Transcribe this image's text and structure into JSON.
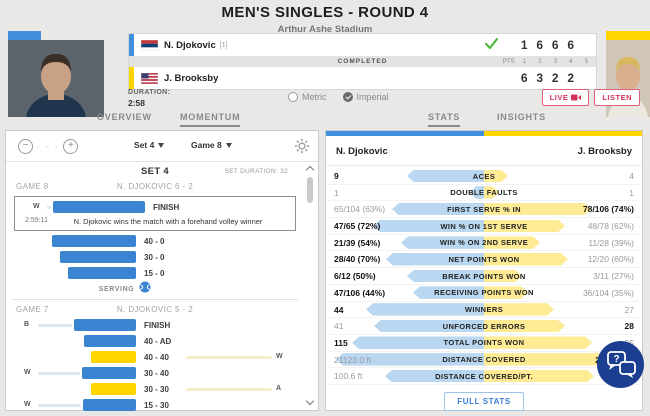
{
  "header": {
    "title": "MEN'S SINGLES - ROUND 4",
    "subtitle": "Arthur Ashe Stadium"
  },
  "scoreboard": {
    "status": "COMPLETED",
    "pts_label": "PTS",
    "set_columns": [
      "1",
      "2",
      "3",
      "4",
      "5"
    ],
    "players": [
      {
        "name": "N. Djokovic",
        "seed": "[1]",
        "flag": "serbia",
        "winner": true,
        "sets": [
          "1",
          "6",
          "6",
          "6"
        ]
      },
      {
        "name": "J. Brooksby",
        "seed": "",
        "flag": "usa",
        "winner": false,
        "sets": [
          "6",
          "3",
          "2",
          "2"
        ]
      }
    ],
    "duration_label": "DURATION:",
    "duration": "2:58",
    "units": {
      "options": [
        "Metric",
        "Imperial"
      ],
      "selected": "Imperial"
    },
    "buttons": [
      {
        "label": "LIVE"
      },
      {
        "label": "LISTEN"
      }
    ]
  },
  "tabs": [
    {
      "label": "OVERVIEW",
      "active": false
    },
    {
      "label": "MOMENTUM",
      "active": true
    },
    {
      "label": "STATS",
      "active": true
    },
    {
      "label": "INSIGHTS",
      "active": false
    }
  ],
  "momentum": {
    "toolbar": {
      "set_select": "Set 4",
      "game_select": "Game 8"
    },
    "set_title": "SET 4",
    "set_duration": "SET DURATION: 32",
    "games": [
      {
        "label": "GAME 8",
        "score": "N. DJOKOVIC 6 - 2",
        "finish": {
          "left_letter": "W",
          "bar": {
            "color": "blue",
            "width": 92
          },
          "label": "FINISH",
          "time": "2:59:11",
          "caption": "N. Djokovic wins the match with a forehand volley winner"
        },
        "rows": [
          {
            "bar": {
              "color": "blue",
              "width": 84
            },
            "label": "40 - 0"
          },
          {
            "bar": {
              "color": "blue",
              "width": 76
            },
            "label": "30 - 0"
          },
          {
            "bar": {
              "color": "blue",
              "width": 68
            },
            "label": "15 - 0"
          }
        ],
        "serving_label": "SERVING"
      },
      {
        "label": "GAME 7",
        "score": "N. DJOKOVIC 5 - 2",
        "rows": [
          {
            "left_letter": "B",
            "bar": {
              "color": "blue",
              "width": 62
            },
            "label": "FINISH"
          },
          {
            "bar": {
              "color": "blue",
              "width": 52
            },
            "label": "40 - AD"
          },
          {
            "bar": {
              "color": "yellow",
              "width": 45
            },
            "label": "40 - 40",
            "right_letter": "W"
          },
          {
            "left_letter": "W",
            "bar": {
              "color": "blue",
              "width": 54
            },
            "label": "30 - 40"
          },
          {
            "bar": {
              "color": "yellow",
              "width": 45
            },
            "label": "30 - 30",
            "right_letter": "A"
          },
          {
            "left_letter": "W",
            "bar": {
              "color": "blue",
              "width": 53
            },
            "label": "15 - 30"
          }
        ]
      }
    ]
  },
  "stats": {
    "left_player": "N. Djokovic",
    "right_player": "J. Brooksby",
    "rows": [
      {
        "label": "ACES",
        "left": "9",
        "right": "4",
        "leader": "left",
        "lf": 0.52,
        "rf": 0.16
      },
      {
        "label": "DOUBLE FAULTS",
        "left": "1",
        "right": "1",
        "leader": "none",
        "lf": 0.1,
        "rf": 0.1
      },
      {
        "label": "FIRST SERVE % IN",
        "left": "65/104 (63%)",
        "right": "78/106 (74%)",
        "leader": "right",
        "lf": 0.62,
        "rf": 0.72
      },
      {
        "label": "WIN % ON 1ST SERVE",
        "left": "47/65 (72%)",
        "right": "48/78 (62%)",
        "leader": "left",
        "lf": 0.75,
        "rf": 0.55
      },
      {
        "label": "WIN % ON 2ND SERVE",
        "left": "21/39 (54%)",
        "right": "11/28 (39%)",
        "leader": "left",
        "lf": 0.56,
        "rf": 0.38
      },
      {
        "label": "NET POINTS WON",
        "left": "28/40 (70%)",
        "right": "12/20 (60%)",
        "leader": "left",
        "lf": 0.66,
        "rf": 0.57
      },
      {
        "label": "BREAK POINTS WON",
        "left": "6/12 (50%)",
        "right": "3/11 (27%)",
        "leader": "left",
        "lf": 0.52,
        "rf": 0.26
      },
      {
        "label": "RECEIVING POINTS WON",
        "left": "47/106 (44%)",
        "right": "36/104 (35%)",
        "leader": "left",
        "lf": 0.48,
        "rf": 0.3
      },
      {
        "label": "WINNERS",
        "left": "44",
        "right": "27",
        "leader": "left",
        "lf": 0.8,
        "rf": 0.47
      },
      {
        "label": "UNFORCED ERRORS",
        "left": "41",
        "right": "28",
        "leader": "right",
        "lf": 0.74,
        "rf": 0.55
      },
      {
        "label": "TOTAL POINTS WON",
        "left": "115",
        "right": "95",
        "leader": "left",
        "lf": 0.89,
        "rf": 0.73
      },
      {
        "label": "DISTANCE COVERED",
        "left": "21123.0 ft",
        "right": "21664.5 ft",
        "leader": "right",
        "lf": 1.0,
        "rf": 0.93
      },
      {
        "label": "DISTANCE COVERED/PT.",
        "left": "100.6 ft",
        "right": "103.2 ft",
        "leader": "right",
        "lf": 0.67,
        "rf": 0.74
      }
    ],
    "full_stats_label": "FULL STATS"
  },
  "colors": {
    "blue": "#418fde",
    "yellow": "#ffd400",
    "light_blue": "#b9d7f1",
    "light_yellow": "#ffeb94",
    "red": "#d6335c",
    "navy": "#1c3e90",
    "green": "#4fb93d"
  }
}
